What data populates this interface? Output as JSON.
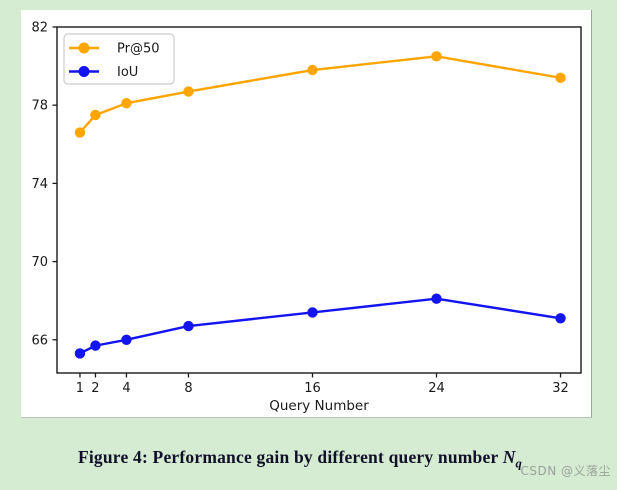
{
  "page": {
    "background_color": "#d5ecd3",
    "figure_background": "#ffffff"
  },
  "chart_data": {
    "type": "line",
    "x": [
      1,
      2,
      4,
      8,
      16,
      24,
      32
    ],
    "series": [
      {
        "name": "Pr@50",
        "color": "#FFA500",
        "values": [
          76.6,
          77.5,
          78.1,
          78.7,
          79.8,
          80.5,
          79.4
        ]
      },
      {
        "name": "IoU",
        "color": "#1414F0",
        "values": [
          65.3,
          65.7,
          66.0,
          66.7,
          67.4,
          68.1,
          67.1
        ]
      }
    ],
    "xlabel": "Query Number",
    "ylabel": "",
    "title": "",
    "xticks": [
      1,
      2,
      4,
      8,
      16,
      24,
      32
    ],
    "yticks": [
      66,
      70,
      74,
      78,
      82
    ],
    "xlim": [
      -0.48,
      33.32
    ],
    "ylim": [
      64.3,
      82
    ],
    "grid": false,
    "legend_position": "upper-left",
    "axis_color": "#1a1a1a",
    "tick_label_color": "#1a1a1a",
    "legend_border_color": "#cccccc"
  },
  "caption": {
    "text": "Figure 4: Performance gain by different query number ",
    "math_var": "N",
    "math_sub": "q"
  },
  "watermark": {
    "text": "CSDN @义落尘"
  }
}
